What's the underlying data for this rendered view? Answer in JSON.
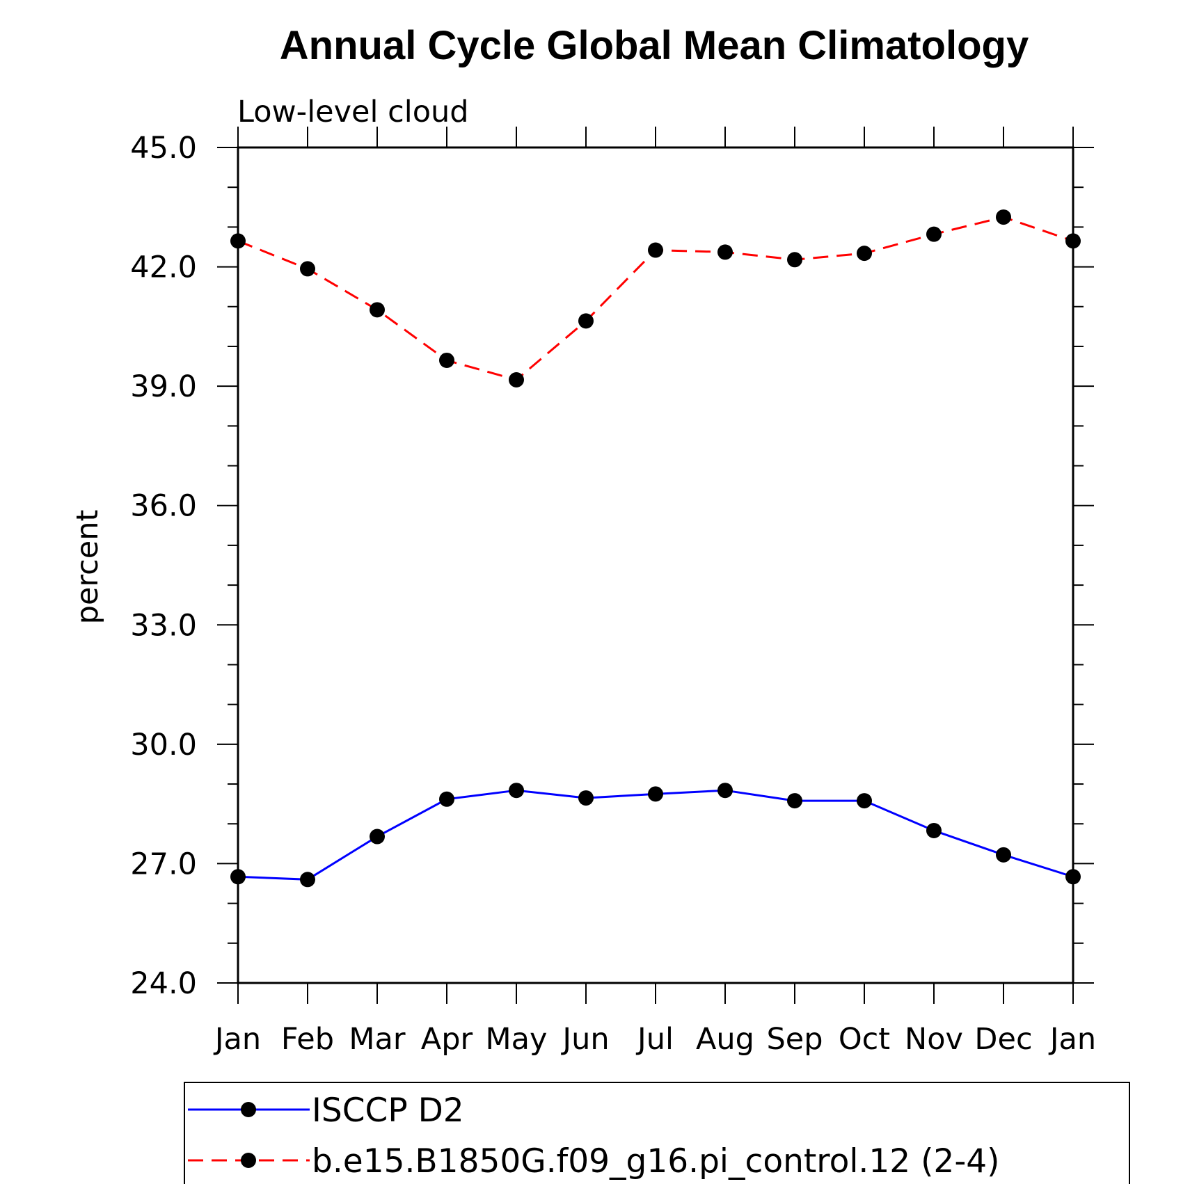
{
  "chart_data": {
    "type": "line",
    "title": "Annual Cycle Global Mean Climatology",
    "subtitle": "Low-level cloud",
    "xlabel": "",
    "ylabel": "percent",
    "categories": [
      "Jan",
      "Feb",
      "Mar",
      "Apr",
      "May",
      "Jun",
      "Jul",
      "Aug",
      "Sep",
      "Oct",
      "Nov",
      "Dec",
      "Jan"
    ],
    "ylim": [
      24.0,
      45.0
    ],
    "yticks": [
      "24.0",
      "27.0",
      "30.0",
      "33.0",
      "36.0",
      "39.0",
      "42.0",
      "45.0"
    ],
    "grid": false,
    "legend_position": "bottom",
    "series": [
      {
        "name": "ISCCP D2",
        "color": "#0000ff",
        "line_style": "solid",
        "marker": "filled-circle",
        "values": [
          26.67,
          26.6,
          27.68,
          28.62,
          28.84,
          28.65,
          28.75,
          28.84,
          28.58,
          28.58,
          27.83,
          27.22,
          26.67
        ]
      },
      {
        "name": "b.e15.B1850G.f09_g16.pi_control.12 (2-4)",
        "color": "#ff0000",
        "line_style": "dashed",
        "marker": "filled-circle",
        "values": [
          42.65,
          41.95,
          40.92,
          39.65,
          39.16,
          40.64,
          42.42,
          42.37,
          42.18,
          42.34,
          42.82,
          43.25,
          42.65
        ]
      }
    ]
  }
}
